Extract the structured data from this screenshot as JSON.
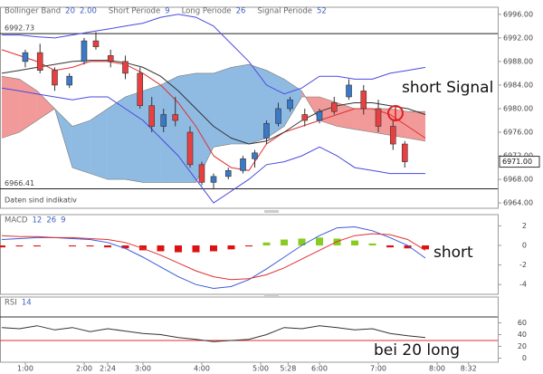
{
  "chart_data": [
    {
      "type": "candlestick",
      "indicators": [
        {
          "label": "Bollinger Band",
          "params": [
            "20",
            "2.00"
          ]
        },
        {
          "label": "Short Periode",
          "params": [
            "9"
          ]
        },
        {
          "label": "Long Periode",
          "params": [
            "26"
          ]
        },
        {
          "label": "Signal Periode",
          "params": [
            "52"
          ]
        }
      ],
      "note": "Daten sind indikativ",
      "annotation": "short Signal",
      "xlim": [
        0.57,
        9.03
      ],
      "ylim": [
        6963.1,
        6997.2
      ],
      "yticks": [
        {
          "value": 6964,
          "label": "6964.00"
        },
        {
          "value": 6968,
          "label": "6968.00"
        },
        {
          "value": 6972,
          "label": "6972.00"
        },
        {
          "value": 6976,
          "label": "6976.00"
        },
        {
          "value": 6980,
          "label": "6980.00"
        },
        {
          "value": 6984,
          "label": "6984.00"
        },
        {
          "value": 6988,
          "label": "6988.00"
        },
        {
          "value": 6992,
          "label": "6992.00"
        },
        {
          "value": 6996,
          "label": "6996.00"
        }
      ],
      "levels": [
        {
          "value": 6992.73,
          "label": "6992.73"
        },
        {
          "value": 6966.41,
          "label": "6966.41"
        }
      ],
      "last_price": {
        "value": 6971,
        "label": "6971.00"
      },
      "candles": {
        "x": [
          1.0,
          1.25,
          1.5,
          1.75,
          2.0,
          2.2,
          2.45,
          2.7,
          2.95,
          3.15,
          3.35,
          3.55,
          3.8,
          4.0,
          4.2,
          4.45,
          4.7,
          4.9,
          5.1,
          5.3,
          5.5,
          5.75,
          6.0,
          6.25,
          6.5,
          6.75,
          7.0,
          7.25,
          7.45
        ],
        "open": [
          6988,
          6989.5,
          6986.5,
          6984,
          6988,
          6991.5,
          6989,
          6988,
          6986,
          6980.5,
          6977,
          6979,
          6976,
          6970.5,
          6967.5,
          6968.5,
          6969.5,
          6971.5,
          6975,
          6977.5,
          6980,
          6979,
          6978,
          6981,
          6982,
          6983,
          6980,
          6977,
          6974
        ],
        "high": [
          6990,
          6991,
          6987,
          6986,
          6992,
          6993,
          6990,
          6989,
          6987,
          6982,
          6980,
          6982,
          6977,
          6971,
          6969,
          6970,
          6972,
          6973,
          6978,
          6981,
          6982,
          6980,
          6980,
          6982,
          6985,
          6984,
          6981.5,
          6978,
          6974.5
        ],
        "low": [
          6987,
          6986,
          6983,
          6983.5,
          6987.5,
          6990,
          6987,
          6985,
          6980,
          6976,
          6976,
          6977,
          6970,
          6967,
          6966.5,
          6968,
          6969,
          6970,
          6974,
          6977,
          6979.5,
          6977,
          6977.5,
          6979,
          6981.5,
          6979,
          6976,
          6973,
          6970
        ],
        "close": [
          6989.5,
          6986.5,
          6984,
          6985.5,
          6991.5,
          6990.5,
          6988,
          6986,
          6980.5,
          6977,
          6979,
          6978,
          6970.5,
          6967.5,
          6968.5,
          6969.5,
          6971.5,
          6972.5,
          6977.5,
          6980,
          6981.5,
          6978,
          6979.5,
          6979.5,
          6984,
          6980,
          6977,
          6974,
          6971
        ],
        "up_color": "#3a78c8",
        "down_color": "#e84040"
      },
      "line_x": [
        0.6,
        0.9,
        1.2,
        1.5,
        1.8,
        2.1,
        2.4,
        2.7,
        3.0,
        3.3,
        3.6,
        3.9,
        4.2,
        4.5,
        4.8,
        5.1,
        5.4,
        5.7,
        6.0,
        6.3,
        6.6,
        6.9,
        7.2,
        7.5,
        7.8
      ],
      "lines": [
        {
          "color": "#4a4ae0",
          "values": [
            6992.5,
            6992.5,
            6992.2,
            6992,
            6992.5,
            6993,
            6993.5,
            6994,
            6994.5,
            6995.5,
            6996,
            6995.5,
            6994,
            6991,
            6988,
            6984,
            6982.5,
            6983.5,
            6985.5,
            6985.5,
            6985,
            6985,
            6986,
            6986.5,
            6987
          ]
        },
        {
          "color": "#4a4ae0",
          "values": [
            6983.5,
            6983,
            6982.5,
            6982,
            6981.5,
            6982,
            6982,
            6980,
            6978,
            6975,
            6972,
            6968,
            6964,
            6966,
            6968,
            6970.5,
            6971,
            6972,
            6973.5,
            6972,
            6970,
            6969.5,
            6969,
            6969,
            6969
          ]
        },
        {
          "color": "#e03030",
          "values": [
            6990,
            6989,
            6988,
            6986.5,
            6987,
            6988,
            6988,
            6987.5,
            6986,
            6984,
            6981,
            6977,
            6972,
            6970,
            6969.5,
            6974,
            6976,
            6977,
            6978,
            6979,
            6980,
            6980,
            6979,
            6977,
            6975
          ]
        },
        {
          "color": "#333333",
          "values": [
            6986,
            6986.5,
            6987,
            6987.5,
            6988,
            6988.2,
            6988.2,
            6987.8,
            6987,
            6985.5,
            6983,
            6980,
            6977,
            6975,
            6974,
            6974.5,
            6976,
            6978,
            6979.5,
            6980.5,
            6981,
            6981,
            6980.5,
            6980,
            6979
          ]
        }
      ],
      "cloud": {
        "span_a": [
          6975,
          6976,
          6978,
          6980,
          6977,
          6978,
          6980,
          6982,
          6983,
          6984,
          6985.5,
          6986,
          6986,
          6987,
          6987.5,
          6986.5,
          6985,
          6983,
          6978,
          6977,
          6976.5,
          6976,
          6975.5,
          6975,
          6974.5
        ],
        "span_b": [
          6985.5,
          6985,
          6983,
          6980,
          6970,
          6969,
          6968,
          6968,
          6967.5,
          6967.5,
          6967.5,
          6967.5,
          6973.5,
          6974,
          6974,
          6975,
          6977,
          6982,
          6982,
          6981,
          6980,
          6980,
          6980,
          6979.5,
          6979.5
        ],
        "up_color": "#8fbbe3",
        "down_color": "#f29a9a"
      }
    },
    {
      "type": "macd",
      "label": "MACD",
      "params": [
        "12",
        "26",
        "9"
      ],
      "annotation": "short",
      "ylim": [
        -5.0,
        3.15
      ],
      "yticks": [
        2,
        0,
        -2,
        -4
      ],
      "histogram": [
        -0.2,
        -0.1,
        -0.1,
        0,
        -0.1,
        -0.1,
        -0.2,
        -0.3,
        -0.5,
        -0.6,
        -0.7,
        -0.7,
        -0.6,
        -0.4,
        -0.1,
        0.3,
        0.6,
        0.7,
        0.8,
        0.7,
        0.5,
        0.2,
        -0.2,
        -0.3,
        -0.4
      ],
      "up_color": "#88cc22",
      "down_color": "#dd1111",
      "series": [
        {
          "color": "#3a5ad8",
          "values": [
            0.6,
            0.7,
            0.8,
            0.8,
            0.7,
            0.6,
            0.3,
            -0.3,
            -1.2,
            -2.2,
            -3.2,
            -4,
            -4.4,
            -4.2,
            -3.5,
            -2.4,
            -1.2,
            0,
            1,
            1.8,
            1.9,
            1.5,
            0.8,
            0,
            -1.3
          ]
        },
        {
          "color": "#e03030",
          "values": [
            1,
            0.9,
            0.9,
            0.8,
            0.8,
            0.7,
            0.6,
            0.3,
            -0.3,
            -1,
            -1.8,
            -2.6,
            -3.2,
            -3.5,
            -3.4,
            -3,
            -2.3,
            -1.4,
            -0.5,
            0.4,
            1,
            1.2,
            1.1,
            0.6,
            -0.5
          ]
        }
      ]
    },
    {
      "type": "rsi",
      "label": "RSI",
      "params": [
        "14"
      ],
      "annotation": "bei 20 long",
      "ylim": [
        -6.9,
        103.8
      ],
      "yticks": [
        0,
        20,
        40,
        60
      ],
      "levels": [
        {
          "value": 70,
          "color": "#333333"
        },
        {
          "value": 30,
          "color": "#e03030"
        }
      ],
      "series": [
        {
          "color": "#333333",
          "values": [
            52,
            50,
            55,
            48,
            52,
            45,
            50,
            46,
            42,
            40,
            35,
            32,
            28,
            30,
            32,
            40,
            52,
            50,
            55,
            52,
            48,
            50,
            42,
            38,
            35
          ]
        }
      ],
      "xticks": [
        {
          "value": 1,
          "label": "1:00"
        },
        {
          "value": 2,
          "label": "2:00"
        },
        {
          "value": 2.4,
          "label": "2:24"
        },
        {
          "value": 3,
          "label": "3:00"
        },
        {
          "value": 4,
          "label": "4:00"
        },
        {
          "value": 5,
          "label": "5:00"
        },
        {
          "value": 5.467,
          "label": "5:28"
        },
        {
          "value": 6,
          "label": "6:00"
        },
        {
          "value": 7,
          "label": "7:00"
        },
        {
          "value": 8,
          "label": "8:00"
        },
        {
          "value": 8.533,
          "label": "8:32"
        }
      ]
    }
  ]
}
